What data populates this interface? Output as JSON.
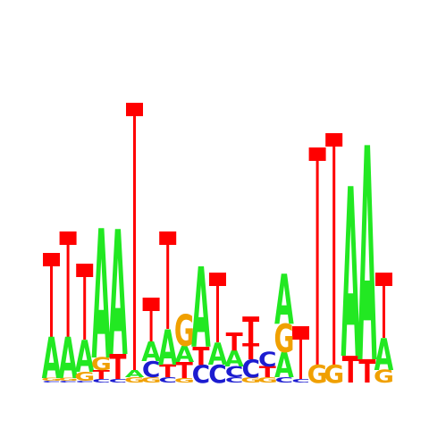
{
  "colors": {
    "A": "#22e822",
    "C": "#1c1cd0",
    "G": "#f0a000",
    "T": "#ff0000",
    "stem": "#ff0000",
    "background": "#ffffff"
  },
  "chart_data": {
    "type": "sequence-logo",
    "title": "",
    "xlabel": "",
    "ylabel": "",
    "columns": [
      {
        "letters": [
          [
            "C",
            2
          ],
          [
            "G",
            3
          ],
          [
            "A",
            46
          ]
        ],
        "stem": 132
      },
      {
        "letters": [
          [
            "C",
            2
          ],
          [
            "G",
            3
          ],
          [
            "A",
            46
          ]
        ],
        "stem": 156
      },
      {
        "letters": [
          [
            "C",
            2
          ],
          [
            "G",
            10
          ],
          [
            "A",
            36
          ]
        ],
        "stem": 120
      },
      {
        "letters": [
          [
            "C",
            4
          ],
          [
            "T",
            10
          ],
          [
            "G",
            14
          ],
          [
            "A",
            145
          ]
        ],
        "stem": 0
      },
      {
        "letters": [
          [
            "C",
            4
          ],
          [
            "T",
            28
          ],
          [
            "A",
            140
          ]
        ],
        "stem": 0
      },
      {
        "letters": [
          [
            "G",
            6
          ],
          [
            "A",
            8
          ]
        ],
        "stem": 300
      },
      {
        "letters": [
          [
            "G",
            6
          ],
          [
            "C",
            18
          ],
          [
            "A",
            22
          ]
        ],
        "stem": 82
      },
      {
        "letters": [
          [
            "C",
            6
          ],
          [
            "T",
            14
          ],
          [
            "A",
            40
          ]
        ],
        "stem": 156
      },
      {
        "letters": [
          [
            "G",
            5
          ],
          [
            "T",
            18
          ],
          [
            "A",
            18
          ],
          [
            "G",
            35
          ]
        ],
        "stem": 0
      },
      {
        "letters": [
          [
            "C",
            20
          ],
          [
            "T",
            20
          ],
          [
            "A",
            90
          ]
        ],
        "stem": 0
      },
      {
        "letters": [
          [
            "C",
            20
          ],
          [
            "A",
            25
          ]
        ],
        "stem": 110
      },
      {
        "letters": [
          [
            "C",
            6
          ],
          [
            "C",
            12
          ],
          [
            "A",
            18
          ],
          [
            "T",
            20
          ]
        ],
        "stem": 0
      },
      {
        "letters": [
          [
            "G",
            6
          ],
          [
            "C",
            20
          ],
          [
            "T",
            18
          ],
          [
            "T",
            30
          ]
        ],
        "stem": 0
      },
      {
        "letters": [
          [
            "G",
            6
          ],
          [
            "T",
            12
          ],
          [
            "C",
            16
          ]
        ],
        "stem": 0
      },
      {
        "letters": [
          [
            "C",
            6
          ],
          [
            "A",
            28
          ],
          [
            "G",
            32
          ],
          [
            "A",
            56
          ]
        ],
        "stem": 0
      },
      {
        "letters": [
          [
            "C",
            4
          ]
        ],
        "stem": 50
      },
      {
        "letters": [
          [
            "G",
            20
          ]
        ],
        "stem": 250
      },
      {
        "letters": [
          [
            "G",
            20
          ]
        ],
        "stem": 266
      },
      {
        "letters": [
          [
            "T",
            30
          ],
          [
            "A",
            190
          ]
        ],
        "stem": 0
      },
      {
        "letters": [
          [
            "T",
            26
          ],
          [
            "A",
            240
          ]
        ],
        "stem": 0
      },
      {
        "letters": [
          [
            "G",
            14
          ],
          [
            "A",
            36
          ]
        ],
        "stem": 110
      }
    ]
  }
}
